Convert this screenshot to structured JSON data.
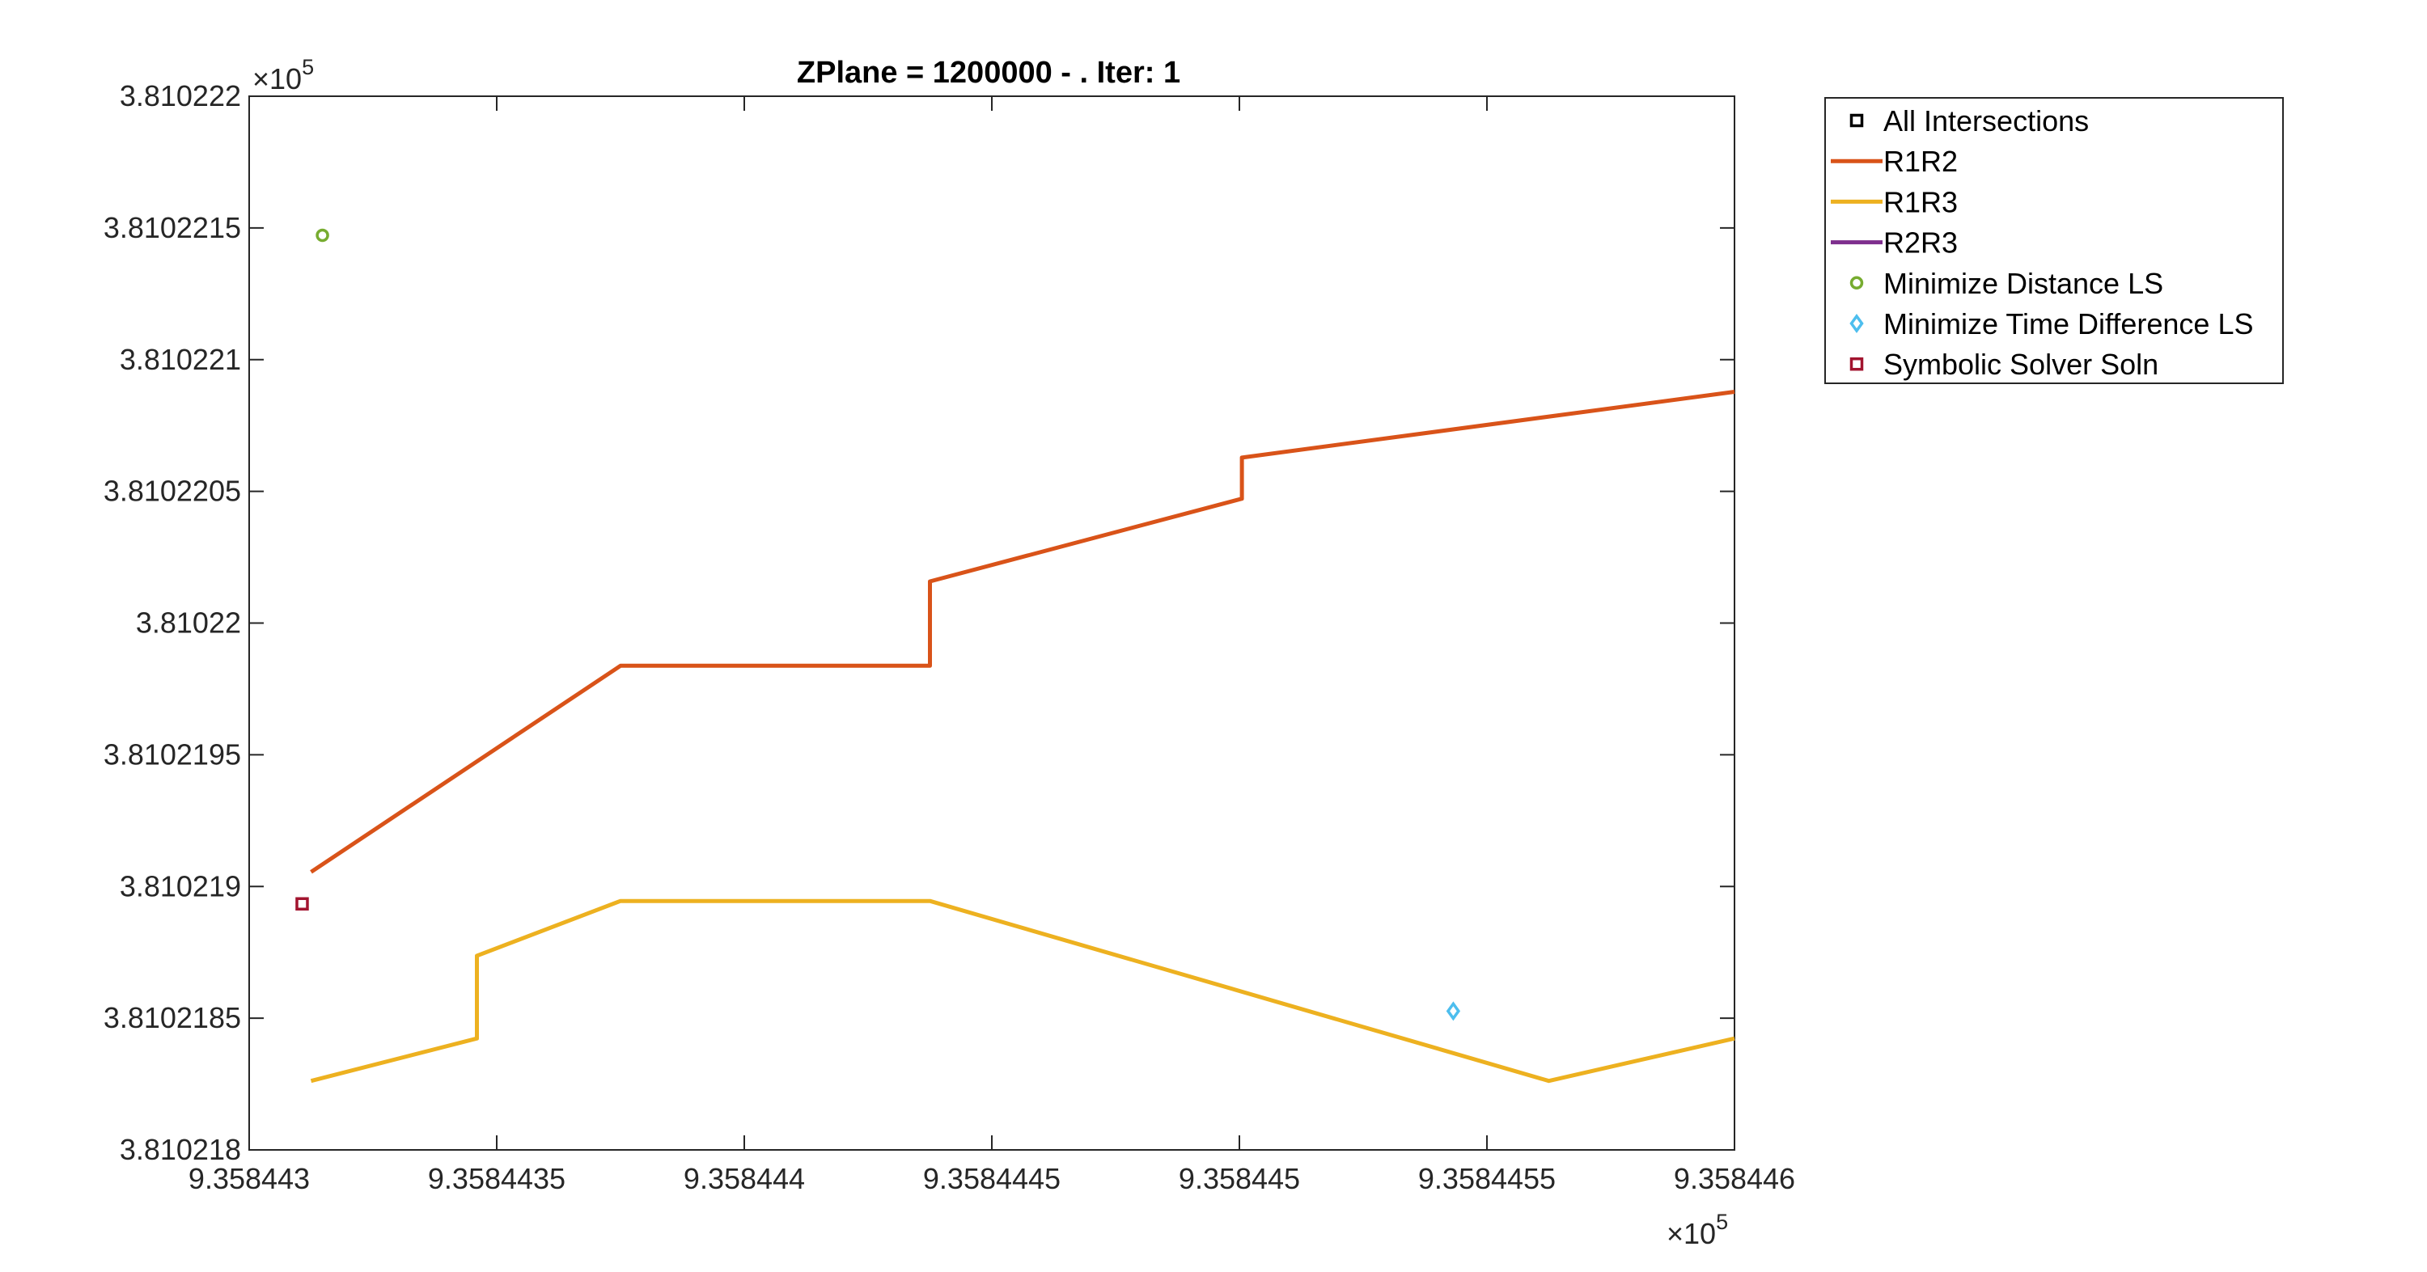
{
  "chart_data": {
    "type": "line",
    "title": "ZPlane = 1200000 - . Iter: 1",
    "xlabel": "",
    "ylabel": "",
    "xlim": [
      935844.3,
      935844.6
    ],
    "ylim": [
      381021.8,
      381022.2
    ],
    "x_ticks": [
      935844.3,
      935844.35,
      935844.4,
      935844.45,
      935844.5,
      935844.55,
      935844.6
    ],
    "x_tick_labels": [
      "9.358443",
      "9.3584435",
      "9.358444",
      "9.3584445",
      "9.358445",
      "9.3584455",
      "9.358446"
    ],
    "y_ticks": [
      381021.8,
      381021.85,
      381021.9,
      381021.95,
      381022.0,
      381022.05,
      381022.1,
      381022.15,
      381022.2
    ],
    "y_tick_labels": [
      "3.810218",
      "3.8102185",
      "3.810219",
      "3.8102195",
      "3.81022",
      "3.8102205",
      "3.810221",
      "3.8102215",
      "3.810222"
    ],
    "x_exponent": {
      "base": "×10",
      "power": "5"
    },
    "y_exponent": {
      "base": "×10",
      "power": "5"
    },
    "grid": false,
    "legend_position": "outside-top-right",
    "series": [
      {
        "name": "All Intersections",
        "kind": "marker",
        "marker": "square",
        "color": "#000000",
        "points": []
      },
      {
        "name": "R1R2",
        "kind": "line",
        "color": "#D95319",
        "points": [
          [
            935844.3125,
            381021.9055
          ],
          [
            935844.375,
            381021.9838
          ],
          [
            935844.4375,
            381021.9838
          ],
          [
            935844.4375,
            381022.0158
          ],
          [
            935844.5005,
            381022.0472
          ],
          [
            935844.5005,
            381022.0628
          ],
          [
            935844.6,
            381022.0878
          ]
        ]
      },
      {
        "name": "R1R3",
        "kind": "line",
        "color": "#EDB120",
        "points": [
          [
            935844.3125,
            381021.8262
          ],
          [
            935844.346,
            381021.8423
          ],
          [
            935844.346,
            381021.8737
          ],
          [
            935844.375,
            381021.8945
          ],
          [
            935844.4375,
            381021.8945
          ],
          [
            935844.5625,
            381021.8262
          ],
          [
            935844.6,
            381021.8423
          ]
        ]
      },
      {
        "name": "R2R3",
        "kind": "line",
        "color": "#7E2F8E",
        "points": []
      },
      {
        "name": "Minimize Distance LS",
        "kind": "marker",
        "marker": "circle",
        "color": "#77AC30",
        "points": [
          [
            935844.3148,
            381022.1472
          ]
        ]
      },
      {
        "name": "Minimize Time Difference LS",
        "kind": "marker",
        "marker": "diamond",
        "color": "#4DBEEE",
        "points": [
          [
            935844.5432,
            381021.8527
          ]
        ]
      },
      {
        "name": "Symbolic Solver Soln",
        "kind": "marker",
        "marker": "square",
        "color": "#A2142F",
        "points": [
          [
            935844.3107,
            381021.8934
          ]
        ]
      }
    ]
  }
}
